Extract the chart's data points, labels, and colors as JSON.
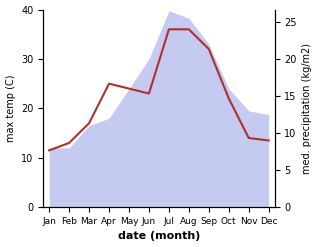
{
  "months": [
    "Jan",
    "Feb",
    "Mar",
    "Apr",
    "May",
    "Jun",
    "Jul",
    "Aug",
    "Sep",
    "Oct",
    "Nov",
    "Dec"
  ],
  "temp": [
    11.5,
    13.0,
    17.0,
    25.0,
    24.0,
    23.0,
    36.0,
    36.0,
    32.0,
    22.0,
    14.0,
    13.5
  ],
  "precip": [
    8.0,
    8.0,
    11.0,
    12.0,
    16.0,
    20.0,
    26.5,
    25.5,
    22.0,
    16.0,
    13.0,
    12.5
  ],
  "temp_color": "#b03030",
  "precip_fill_color": "#c5caf0",
  "ylim_left": [
    0,
    40
  ],
  "ylim_right": [
    0,
    26.67
  ],
  "ylabel_left": "max temp (C)",
  "ylabel_right": "med. precipitation (kg/m2)",
  "xlabel": "date (month)",
  "bg_color": "#ffffff",
  "figsize": [
    3.18,
    2.47
  ],
  "dpi": 100,
  "left_yticks": [
    0,
    10,
    20,
    30,
    40
  ],
  "right_yticks": [
    0,
    5,
    10,
    15,
    20,
    25
  ]
}
